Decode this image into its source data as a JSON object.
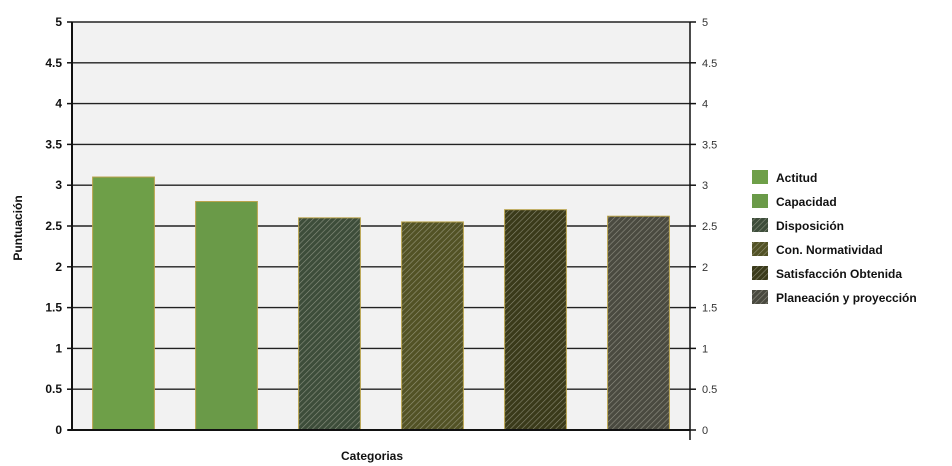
{
  "chart_data": {
    "type": "bar",
    "categories": [
      "Actitud",
      "Capacidad",
      "Disposición",
      "Con. Normatividad",
      "Satisfacción Obtenida",
      "Planeación y proyección"
    ],
    "values": [
      3.1,
      2.8,
      2.6,
      2.55,
      2.7,
      2.62
    ],
    "xlabel": "Categorias",
    "ylabel": "Puntuación",
    "ylim": [
      0,
      5
    ],
    "yticks": [
      "0",
      "0.5",
      "1",
      "1.5",
      "2",
      "2.5",
      "3",
      "3.5",
      "4",
      "4.5",
      "5"
    ],
    "secondary_yticks": [
      "0",
      "0.5",
      "1",
      "1.5",
      "2",
      "2.5",
      "3",
      "3.5",
      "4",
      "4.5",
      "5"
    ],
    "grid": true,
    "legend_position": "right",
    "legend": [
      {
        "label": "Actitud",
        "color": "#6e9f48",
        "pattern": "solid"
      },
      {
        "label": "Capacidad",
        "color": "#6a9a48",
        "pattern": "solid"
      },
      {
        "label": "Disposición",
        "color": "#3d4d3a",
        "pattern": "hatch"
      },
      {
        "label": "Con.  Normatividad",
        "color": "#525225",
        "pattern": "hatch"
      },
      {
        "label": "Satisfacción Obtenida",
        "color": "#3a3a1a",
        "pattern": "hatch"
      },
      {
        "label": "Planeación y proyección",
        "color": "#4a4a40",
        "pattern": "hatch"
      }
    ]
  }
}
